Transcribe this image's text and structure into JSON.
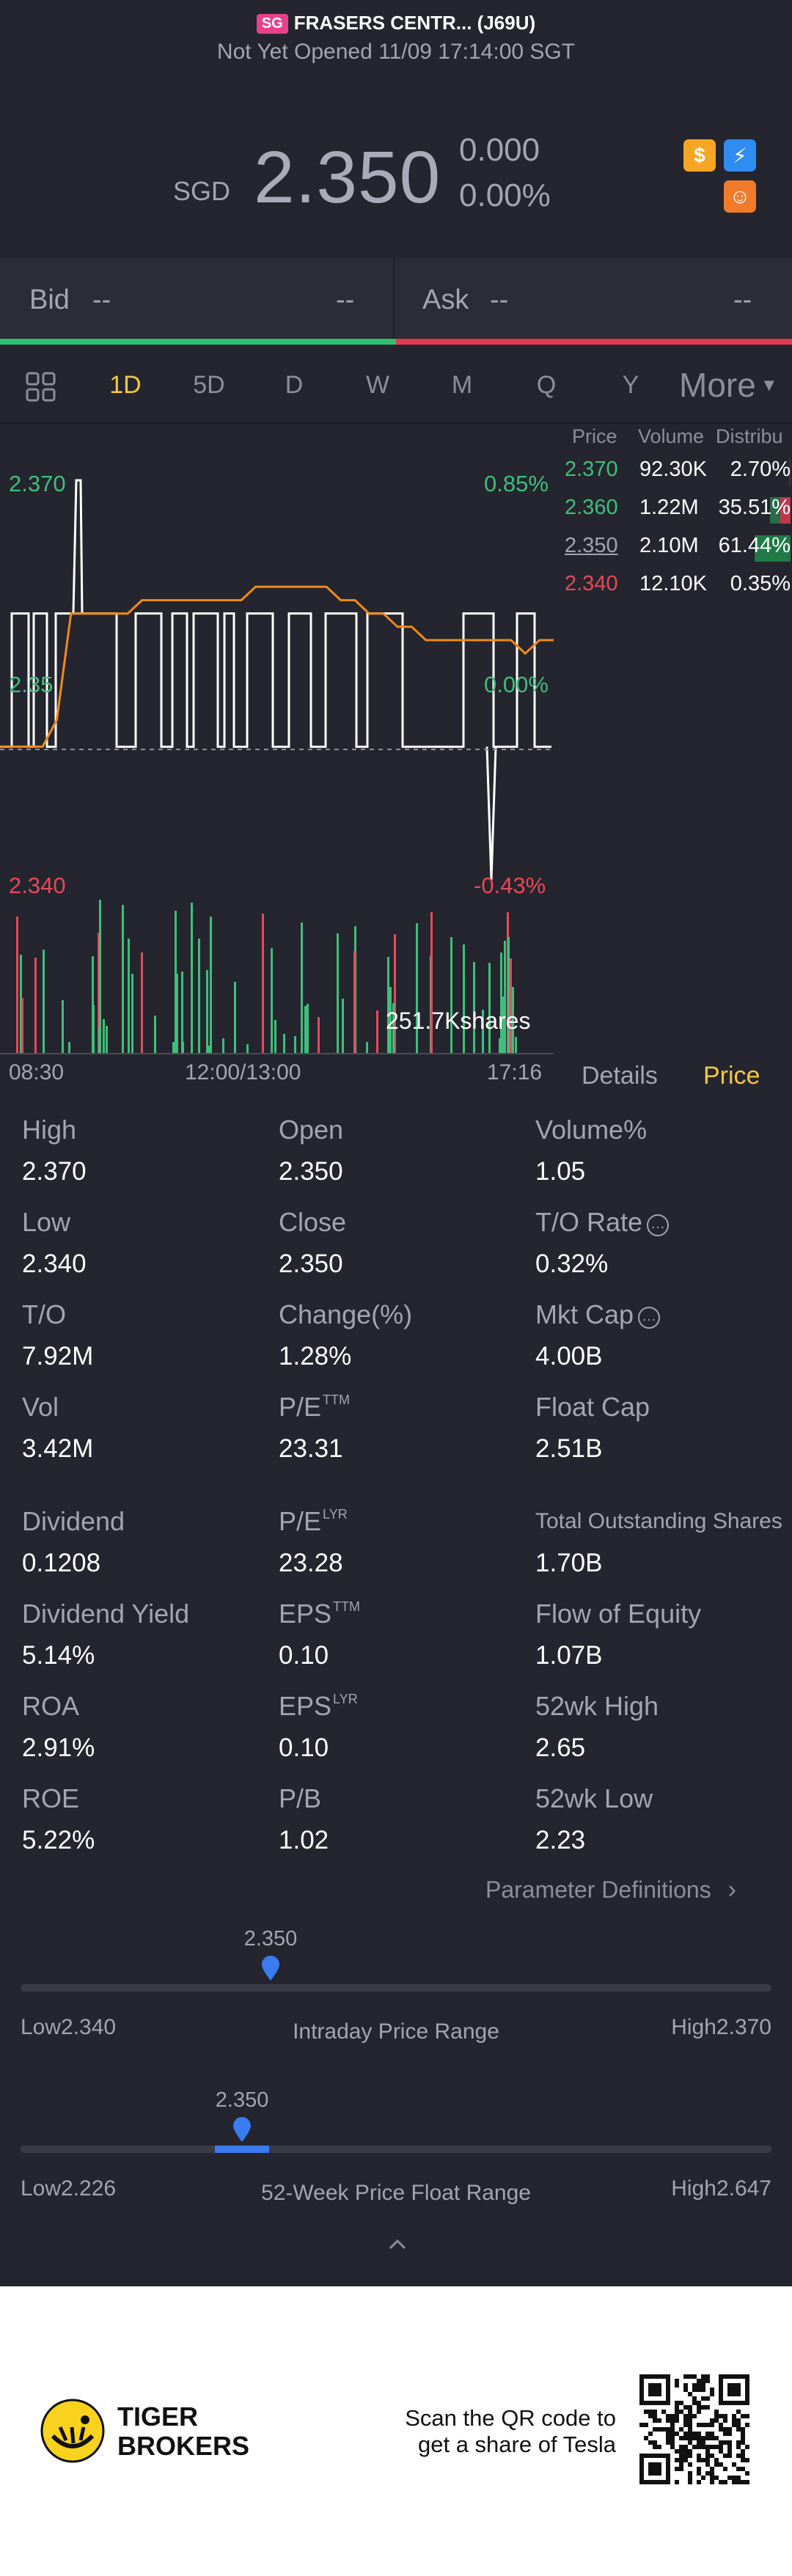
{
  "header": {
    "market_flag": "SG",
    "title": "FRASERS CENTR... (J69U)",
    "status": "Not Yet Opened 11/09 17:14:00 SGT",
    "currency": "SGD",
    "price": "2.350",
    "change": "0.000",
    "change_pct": "0.00%",
    "icons": [
      "dollar-badge-icon",
      "lightning-badge-icon",
      "tiger-badge-icon"
    ]
  },
  "bid_ask": {
    "bid_label": "Bid",
    "bid_price": "--",
    "bid_size": "--",
    "ask_label": "Ask",
    "ask_price": "--",
    "ask_size": "--"
  },
  "period_tabs": {
    "items": [
      "1D",
      "5D",
      "D",
      "W",
      "M",
      "Q",
      "Y"
    ],
    "active": "1D",
    "more": "More"
  },
  "chart": {
    "high_price": "2.370",
    "high_pct": "0.85%",
    "mid_price": "2.35",
    "mid_pct": "0.00%",
    "low_price": "2.340",
    "low_pct": "-0.43%",
    "volume_label": "251.7Kshares",
    "time_start": "08:30",
    "time_mid": "12:00/13:00",
    "time_end": "17:16"
  },
  "chart_data": {
    "type": "line",
    "title": "",
    "ylim": [
      2.34,
      2.37
    ],
    "series": [
      {
        "values": [
          2.35,
          2.35,
          2.35,
          2.35,
          2.352,
          2.36,
          2.36,
          2.36,
          2.36,
          2.36,
          2.361,
          2.361,
          2.361,
          2.361,
          2.361,
          2.361,
          2.361,
          2.361,
          2.362,
          2.362,
          2.362,
          2.362,
          2.362,
          2.362,
          2.361,
          2.361,
          2.36,
          2.36,
          2.359,
          2.359,
          2.358,
          2.358,
          2.358,
          2.358,
          2.358,
          2.358,
          2.358,
          2.357,
          2.358,
          2.358
        ]
      }
    ],
    "colors": {
      "price_line": "#ffffff",
      "avg_line": "#f0891b",
      "up": "#3ebf7c",
      "down": "#e64a5a"
    }
  },
  "ladder": {
    "headers": [
      "Price",
      "Volume",
      "Distribu"
    ],
    "rows": [
      {
        "price": "2.370",
        "volume": "92.30K",
        "dist": "2.70%",
        "pct": 2.7,
        "color": "#3ebf7c"
      },
      {
        "price": "2.360",
        "volume": "1.22M",
        "dist": "35.51%",
        "pct": 35.51,
        "color": "#3ebf7c"
      },
      {
        "price": "2.350",
        "volume": "2.10M",
        "dist": "61.44%",
        "pct": 61.44,
        "color": "#a3a5b0"
      },
      {
        "price": "2.340",
        "volume": "12.10K",
        "dist": "0.35%",
        "pct": 0.35,
        "color": "#e64a5a"
      }
    ]
  },
  "detail_tabs": {
    "details": "Details",
    "price": "Price"
  },
  "stats": {
    "high": {
      "label": "High",
      "value": "2.370"
    },
    "open": {
      "label": "Open",
      "value": "2.350"
    },
    "volume_pct": {
      "label": "Volume%",
      "value": "1.05"
    },
    "low": {
      "label": "Low",
      "value": "2.340"
    },
    "close": {
      "label": "Close",
      "value": "2.350"
    },
    "to_rate": {
      "label": "T/O Rate",
      "value": "0.32%"
    },
    "to": {
      "label": "T/O",
      "value": "7.92M"
    },
    "change_pct": {
      "label": "Change(%)",
      "value": "1.28%"
    },
    "mkt_cap": {
      "label": "Mkt Cap",
      "value": "4.00B"
    },
    "vol": {
      "label": "Vol",
      "value": "3.42M"
    },
    "pe_ttm": {
      "label": "P/E",
      "sup": "TTM",
      "value": "23.31"
    },
    "float_cap": {
      "label": "Float Cap",
      "value": "2.51B"
    },
    "dividend": {
      "label": "Dividend",
      "value": "0.1208"
    },
    "pe_lyr": {
      "label": "P/E",
      "sup": "LYR",
      "value": "23.28"
    },
    "total_shares": {
      "label": "Total Outstanding Shares",
      "value": "1.70B"
    },
    "div_yield": {
      "label": "Dividend Yield",
      "value": "5.14%"
    },
    "eps_ttm": {
      "label": "EPS",
      "sup": "TTM",
      "value": "0.10"
    },
    "flow_equity": {
      "label": "Flow of Equity",
      "value": "1.07B"
    },
    "roa": {
      "label": "ROA",
      "value": "2.91%"
    },
    "eps_lyr": {
      "label": "EPS",
      "sup": "LYR",
      "value": "0.10"
    },
    "high_52": {
      "label": "52wk High",
      "value": "2.65"
    },
    "roe": {
      "label": "ROE",
      "value": "5.22%"
    },
    "pb": {
      "label": "P/B",
      "value": "1.02"
    },
    "low_52": {
      "label": "52wk Low",
      "value": "2.23"
    }
  },
  "param_link": "Parameter Definitions",
  "intraday": {
    "current": "2.350",
    "low": "Low2.340",
    "high": "High2.370",
    "title": "Intraday Price Range",
    "position": 0.333
  },
  "week52": {
    "current": "2.350",
    "low": "Low2.226",
    "high": "High2.647",
    "title": "52-Week Price Float Range",
    "position": 0.295
  },
  "footer": {
    "brand_line1": "TIGER",
    "brand_line2": "BROKERS",
    "promo_line1": "Scan the QR code to",
    "promo_line2": "get a share of Tesla"
  }
}
